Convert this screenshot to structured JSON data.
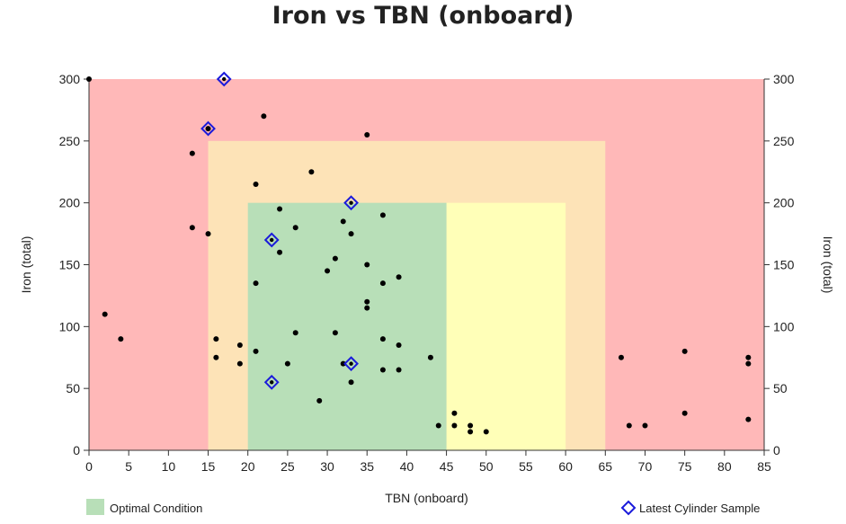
{
  "chart_data": {
    "type": "scatter",
    "title": "Iron vs TBN (onboard)",
    "xlabel": "TBN (onboard)",
    "ylabel": "Iron (total)",
    "ylabel_right": "Iron (total)",
    "xlim": [
      0,
      85
    ],
    "ylim": [
      0,
      300
    ],
    "xticks": [
      0,
      5,
      10,
      15,
      20,
      25,
      30,
      35,
      40,
      45,
      50,
      55,
      60,
      65,
      70,
      75,
      80,
      85
    ],
    "yticks": [
      0,
      50,
      100,
      150,
      200,
      250,
      300
    ],
    "zones": [
      {
        "x": [
          0,
          85
        ],
        "y": [
          0,
          300
        ],
        "color": "#ffb8b8"
      },
      {
        "x": [
          15,
          65
        ],
        "y": [
          0,
          250
        ],
        "color": "#fde3b7"
      },
      {
        "x": [
          45,
          60
        ],
        "y": [
          0,
          200
        ],
        "color": "#ffffb8"
      },
      {
        "x": [
          20,
          45
        ],
        "y": [
          0,
          200
        ],
        "color": "#b8dfb8"
      }
    ],
    "series": [
      {
        "values": [
          [
            0,
            300
          ],
          [
            2,
            110
          ],
          [
            4,
            90
          ],
          [
            13,
            240
          ],
          [
            13,
            180
          ],
          [
            15,
            175
          ],
          [
            15,
            260
          ],
          [
            16,
            90
          ],
          [
            16,
            75
          ],
          [
            19,
            85
          ],
          [
            19,
            70
          ],
          [
            21,
            215
          ],
          [
            21,
            135
          ],
          [
            21,
            80
          ],
          [
            22,
            270
          ],
          [
            24,
            195
          ],
          [
            24,
            160
          ],
          [
            25,
            70
          ],
          [
            26,
            180
          ],
          [
            26,
            95
          ],
          [
            28,
            225
          ],
          [
            29,
            40
          ],
          [
            30,
            145
          ],
          [
            31,
            155
          ],
          [
            31,
            95
          ],
          [
            32,
            185
          ],
          [
            32,
            70
          ],
          [
            33,
            175
          ],
          [
            33,
            55
          ],
          [
            35,
            255
          ],
          [
            35,
            150
          ],
          [
            35,
            120
          ],
          [
            35,
            115
          ],
          [
            37,
            190
          ],
          [
            37,
            135
          ],
          [
            37,
            90
          ],
          [
            37,
            65
          ],
          [
            39,
            140
          ],
          [
            39,
            85
          ],
          [
            39,
            65
          ],
          [
            43,
            75
          ],
          [
            44,
            20
          ],
          [
            46,
            30
          ],
          [
            46,
            20
          ],
          [
            48,
            20
          ],
          [
            48,
            15
          ],
          [
            50,
            15
          ],
          [
            67,
            75
          ],
          [
            68,
            20
          ],
          [
            70,
            20
          ],
          [
            75,
            80
          ],
          [
            75,
            30
          ],
          [
            83,
            75
          ],
          [
            83,
            70
          ],
          [
            83,
            25
          ]
        ]
      },
      {
        "name": "Latest Cylinder Sample",
        "values": [
          [
            17,
            300
          ],
          [
            15,
            260
          ],
          [
            33,
            200
          ],
          [
            23,
            170
          ],
          [
            33,
            70
          ],
          [
            23,
            55
          ]
        ]
      }
    ],
    "legend": [
      {
        "label": "Optimal Condition",
        "color": "#b8dfb8",
        "position": "bottom-left"
      },
      {
        "label": "Latest Cylinder Sample",
        "color": "#1a1adb",
        "position": "bottom-right"
      }
    ],
    "grid": false
  }
}
